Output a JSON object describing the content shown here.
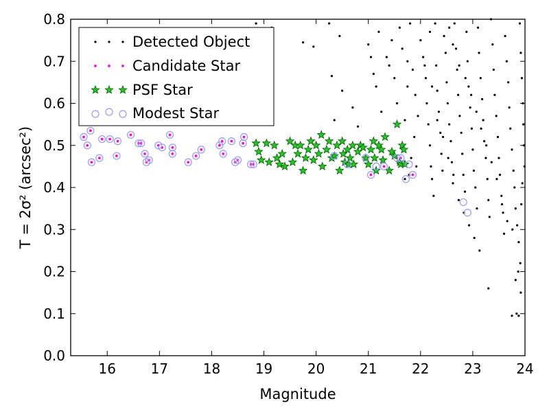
{
  "chart_data": {
    "type": "scatter",
    "xlabel": "Magnitude",
    "ylabel": "T = 2σ² (arcsec²)",
    "xlim": [
      15.3,
      24.0
    ],
    "ylim": [
      0.0,
      0.8
    ],
    "xticks": [
      16,
      17,
      18,
      19,
      20,
      21,
      22,
      23,
      24
    ],
    "yticks": [
      0.0,
      0.1,
      0.2,
      0.3,
      0.4,
      0.5,
      0.6,
      0.7,
      0.8
    ],
    "legend_position": "top-left",
    "colors": {
      "detected": "#000000",
      "candidate": "#ff00ff",
      "psf_fill": "#22c422",
      "psf_edge": "#006400",
      "modest": "#9999ff"
    },
    "series": [
      {
        "name": "Detected Object",
        "marker": "dot",
        "points": [
          [
            18.85,
            0.79
          ],
          [
            19.15,
            0.78
          ],
          [
            20.25,
            0.79
          ],
          [
            20.45,
            0.76
          ],
          [
            19.75,
            0.745
          ],
          [
            19.95,
            0.735
          ],
          [
            20.3,
            0.665
          ],
          [
            20.5,
            0.63
          ],
          [
            20.7,
            0.59
          ],
          [
            20.35,
            0.56
          ],
          [
            20.8,
            0.545
          ],
          [
            21.0,
            0.74
          ],
          [
            21.05,
            0.71
          ],
          [
            21.1,
            0.67
          ],
          [
            21.15,
            0.64
          ],
          [
            21.2,
            0.77
          ],
          [
            21.25,
            0.58
          ],
          [
            21.35,
            0.71
          ],
          [
            21.4,
            0.69
          ],
          [
            21.45,
            0.75
          ],
          [
            21.5,
            0.66
          ],
          [
            21.55,
            0.6
          ],
          [
            21.6,
            0.78
          ],
          [
            21.65,
            0.73
          ],
          [
            21.7,
            0.56
          ],
          [
            21.75,
            0.7
          ],
          [
            21.8,
            0.79
          ],
          [
            21.85,
            0.68
          ],
          [
            21.9,
            0.62
          ],
          [
            21.95,
            0.57
          ],
          [
            21.75,
            0.64
          ],
          [
            21.88,
            0.52
          ],
          [
            21.82,
            0.47
          ],
          [
            21.7,
            0.42
          ],
          [
            21.78,
            0.43
          ],
          [
            21.92,
            0.45
          ],
          [
            22.0,
            0.75
          ],
          [
            22.05,
            0.71
          ],
          [
            22.1,
            0.66
          ],
          [
            22.12,
            0.6
          ],
          [
            22.15,
            0.55
          ],
          [
            22.18,
            0.5
          ],
          [
            22.2,
            0.45
          ],
          [
            22.22,
            0.42
          ],
          [
            22.25,
            0.38
          ],
          [
            22.28,
            0.79
          ],
          [
            22.3,
            0.69
          ],
          [
            22.32,
            0.63
          ],
          [
            22.35,
            0.58
          ],
          [
            22.38,
            0.53
          ],
          [
            22.4,
            0.48
          ],
          [
            22.42,
            0.44
          ],
          [
            22.45,
            0.76
          ],
          [
            22.48,
            0.72
          ],
          [
            22.5,
            0.65
          ],
          [
            22.52,
            0.6
          ],
          [
            22.55,
            0.55
          ],
          [
            22.58,
            0.51
          ],
          [
            22.6,
            0.46
          ],
          [
            22.62,
            0.41
          ],
          [
            22.65,
            0.79
          ],
          [
            22.68,
            0.73
          ],
          [
            22.7,
            0.68
          ],
          [
            22.72,
            0.62
          ],
          [
            22.75,
            0.57
          ],
          [
            22.78,
            0.53
          ],
          [
            22.8,
            0.48
          ],
          [
            22.82,
            0.43
          ],
          [
            22.85,
            0.39
          ],
          [
            22.88,
            0.77
          ],
          [
            22.9,
            0.7
          ],
          [
            22.92,
            0.64
          ],
          [
            22.95,
            0.59
          ],
          [
            22.98,
            0.54
          ],
          [
            23.0,
            0.49
          ],
          [
            23.02,
            0.44
          ],
          [
            23.05,
            0.4
          ],
          [
            23.08,
            0.35
          ],
          [
            23.1,
            0.78
          ],
          [
            23.12,
            0.72
          ],
          [
            23.15,
            0.66
          ],
          [
            23.18,
            0.61
          ],
          [
            23.2,
            0.56
          ],
          [
            23.22,
            0.51
          ],
          [
            23.25,
            0.47
          ],
          [
            23.28,
            0.42
          ],
          [
            23.3,
            0.37
          ],
          [
            23.32,
            0.33
          ],
          [
            23.35,
            0.8
          ],
          [
            23.38,
            0.74
          ],
          [
            23.4,
            0.68
          ],
          [
            23.42,
            0.62
          ],
          [
            23.45,
            0.57
          ],
          [
            23.48,
            0.52
          ],
          [
            23.5,
            0.47
          ],
          [
            23.52,
            0.43
          ],
          [
            23.55,
            0.38
          ],
          [
            23.58,
            0.34
          ],
          [
            23.6,
            0.29
          ],
          [
            23.62,
            0.76
          ],
          [
            23.65,
            0.7
          ],
          [
            23.68,
            0.65
          ],
          [
            23.7,
            0.59
          ],
          [
            23.72,
            0.54
          ],
          [
            23.75,
            0.49
          ],
          [
            23.78,
            0.44
          ],
          [
            23.8,
            0.4
          ],
          [
            23.82,
            0.35
          ],
          [
            23.85,
            0.31
          ],
          [
            23.88,
            0.27
          ],
          [
            23.9,
            0.79
          ],
          [
            23.92,
            0.72
          ],
          [
            23.94,
            0.66
          ],
          [
            23.96,
            0.6
          ],
          [
            23.97,
            0.55
          ],
          [
            23.98,
            0.5
          ],
          [
            23.99,
            0.45
          ],
          [
            23.95,
            0.41
          ],
          [
            23.93,
            0.36
          ],
          [
            23.91,
            0.22
          ],
          [
            23.87,
            0.2
          ],
          [
            23.82,
            0.18
          ],
          [
            23.3,
            0.16
          ],
          [
            23.92,
            0.15
          ],
          [
            23.84,
            0.1
          ],
          [
            23.88,
            0.095
          ],
          [
            23.75,
            0.095
          ],
          [
            22.55,
            0.78
          ],
          [
            22.62,
            0.74
          ],
          [
            22.74,
            0.69
          ],
          [
            22.86,
            0.66
          ],
          [
            22.97,
            0.62
          ],
          [
            23.07,
            0.58
          ],
          [
            23.16,
            0.54
          ],
          [
            23.26,
            0.5
          ],
          [
            23.36,
            0.46
          ],
          [
            23.46,
            0.42
          ],
          [
            23.56,
            0.36
          ],
          [
            23.66,
            0.32
          ],
          [
            23.76,
            0.3
          ],
          [
            22.18,
            0.77
          ],
          [
            22.08,
            0.69
          ],
          [
            22.22,
            0.64
          ],
          [
            22.32,
            0.56
          ],
          [
            22.43,
            0.52
          ],
          [
            22.53,
            0.47
          ],
          [
            22.63,
            0.43
          ],
          [
            22.73,
            0.37
          ],
          [
            22.83,
            0.34
          ],
          [
            22.93,
            0.31
          ],
          [
            23.03,
            0.28
          ],
          [
            23.13,
            0.25
          ]
        ]
      },
      {
        "name": "Candidate Star",
        "marker": "small-circle",
        "points": [
          [
            15.55,
            0.52
          ],
          [
            15.62,
            0.5
          ],
          [
            15.68,
            0.535
          ],
          [
            15.7,
            0.46
          ],
          [
            15.85,
            0.47
          ],
          [
            15.9,
            0.515
          ],
          [
            16.05,
            0.515
          ],
          [
            16.18,
            0.475
          ],
          [
            16.2,
            0.51
          ],
          [
            16.45,
            0.525
          ],
          [
            16.6,
            0.505
          ],
          [
            16.65,
            0.505
          ],
          [
            16.72,
            0.48
          ],
          [
            16.75,
            0.46
          ],
          [
            16.8,
            0.465
          ],
          [
            16.98,
            0.5
          ],
          [
            17.05,
            0.495
          ],
          [
            17.2,
            0.525
          ],
          [
            17.25,
            0.495
          ],
          [
            17.25,
            0.48
          ],
          [
            17.55,
            0.46
          ],
          [
            17.7,
            0.475
          ],
          [
            17.8,
            0.49
          ],
          [
            18.15,
            0.5
          ],
          [
            18.2,
            0.51
          ],
          [
            18.22,
            0.48
          ],
          [
            18.38,
            0.51
          ],
          [
            18.45,
            0.46
          ],
          [
            18.5,
            0.465
          ],
          [
            18.6,
            0.505
          ],
          [
            18.62,
            0.52
          ],
          [
            18.75,
            0.455
          ],
          [
            18.8,
            0.455
          ],
          [
            21.05,
            0.43
          ],
          [
            21.3,
            0.45
          ],
          [
            21.55,
            0.47
          ],
          [
            21.62,
            0.47
          ],
          [
            21.85,
            0.43
          ]
        ]
      },
      {
        "name": "PSF Star",
        "marker": "star",
        "points": [
          [
            18.85,
            0.505
          ],
          [
            18.9,
            0.485
          ],
          [
            18.95,
            0.465
          ],
          [
            19.05,
            0.505
          ],
          [
            19.1,
            0.46
          ],
          [
            19.2,
            0.5
          ],
          [
            19.25,
            0.47
          ],
          [
            19.3,
            0.455
          ],
          [
            19.35,
            0.48
          ],
          [
            19.4,
            0.45
          ],
          [
            19.5,
            0.51
          ],
          [
            19.55,
            0.46
          ],
          [
            19.6,
            0.5
          ],
          [
            19.65,
            0.48
          ],
          [
            19.7,
            0.5
          ],
          [
            19.75,
            0.44
          ],
          [
            19.8,
            0.47
          ],
          [
            19.85,
            0.49
          ],
          [
            19.9,
            0.51
          ],
          [
            19.95,
            0.465
          ],
          [
            20.0,
            0.5
          ],
          [
            20.05,
            0.48
          ],
          [
            20.1,
            0.525
          ],
          [
            20.12,
            0.45
          ],
          [
            20.2,
            0.49
          ],
          [
            20.25,
            0.51
          ],
          [
            20.3,
            0.47
          ],
          [
            20.35,
            0.475
          ],
          [
            20.4,
            0.5
          ],
          [
            20.45,
            0.44
          ],
          [
            20.5,
            0.51
          ],
          [
            20.52,
            0.48
          ],
          [
            20.55,
            0.46
          ],
          [
            20.6,
            0.49
          ],
          [
            20.62,
            0.455
          ],
          [
            20.65,
            0.47
          ],
          [
            20.7,
            0.5
          ],
          [
            20.72,
            0.455
          ],
          [
            20.8,
            0.485
          ],
          [
            20.85,
            0.5
          ],
          [
            20.9,
            0.495
          ],
          [
            20.95,
            0.47
          ],
          [
            21.0,
            0.455
          ],
          [
            21.05,
            0.49
          ],
          [
            21.1,
            0.51
          ],
          [
            21.12,
            0.47
          ],
          [
            21.15,
            0.44
          ],
          [
            21.2,
            0.5
          ],
          [
            21.25,
            0.49
          ],
          [
            21.28,
            0.465
          ],
          [
            21.32,
            0.52
          ],
          [
            21.4,
            0.44
          ],
          [
            21.45,
            0.485
          ],
          [
            21.5,
            0.475
          ],
          [
            21.55,
            0.55
          ],
          [
            21.6,
            0.46
          ],
          [
            21.62,
            0.455
          ],
          [
            21.65,
            0.5
          ],
          [
            21.68,
            0.49
          ],
          [
            21.7,
            0.455
          ]
        ]
      },
      {
        "name": "Modest Star",
        "marker": "open-circle",
        "points": [
          [
            15.55,
            0.52
          ],
          [
            15.62,
            0.5
          ],
          [
            15.68,
            0.535
          ],
          [
            15.7,
            0.46
          ],
          [
            15.85,
            0.47
          ],
          [
            15.9,
            0.515
          ],
          [
            16.05,
            0.515
          ],
          [
            16.18,
            0.475
          ],
          [
            16.2,
            0.51
          ],
          [
            16.45,
            0.525
          ],
          [
            16.6,
            0.505
          ],
          [
            16.65,
            0.505
          ],
          [
            16.72,
            0.48
          ],
          [
            16.75,
            0.46
          ],
          [
            16.8,
            0.465
          ],
          [
            16.98,
            0.5
          ],
          [
            17.05,
            0.495
          ],
          [
            17.2,
            0.525
          ],
          [
            17.25,
            0.495
          ],
          [
            17.25,
            0.48
          ],
          [
            17.55,
            0.46
          ],
          [
            17.7,
            0.475
          ],
          [
            17.8,
            0.49
          ],
          [
            18.15,
            0.5
          ],
          [
            18.2,
            0.51
          ],
          [
            18.22,
            0.48
          ],
          [
            18.38,
            0.51
          ],
          [
            18.45,
            0.46
          ],
          [
            18.5,
            0.465
          ],
          [
            18.6,
            0.505
          ],
          [
            18.62,
            0.52
          ],
          [
            18.75,
            0.455
          ],
          [
            18.8,
            0.455
          ],
          [
            20.35,
            0.475
          ],
          [
            20.6,
            0.455
          ],
          [
            20.95,
            0.47
          ],
          [
            21.05,
            0.43
          ],
          [
            21.15,
            0.45
          ],
          [
            21.3,
            0.45
          ],
          [
            21.55,
            0.47
          ],
          [
            21.62,
            0.47
          ],
          [
            21.72,
            0.42
          ],
          [
            21.78,
            0.455
          ],
          [
            21.85,
            0.43
          ],
          [
            22.82,
            0.365
          ],
          [
            22.9,
            0.34
          ]
        ]
      }
    ]
  }
}
